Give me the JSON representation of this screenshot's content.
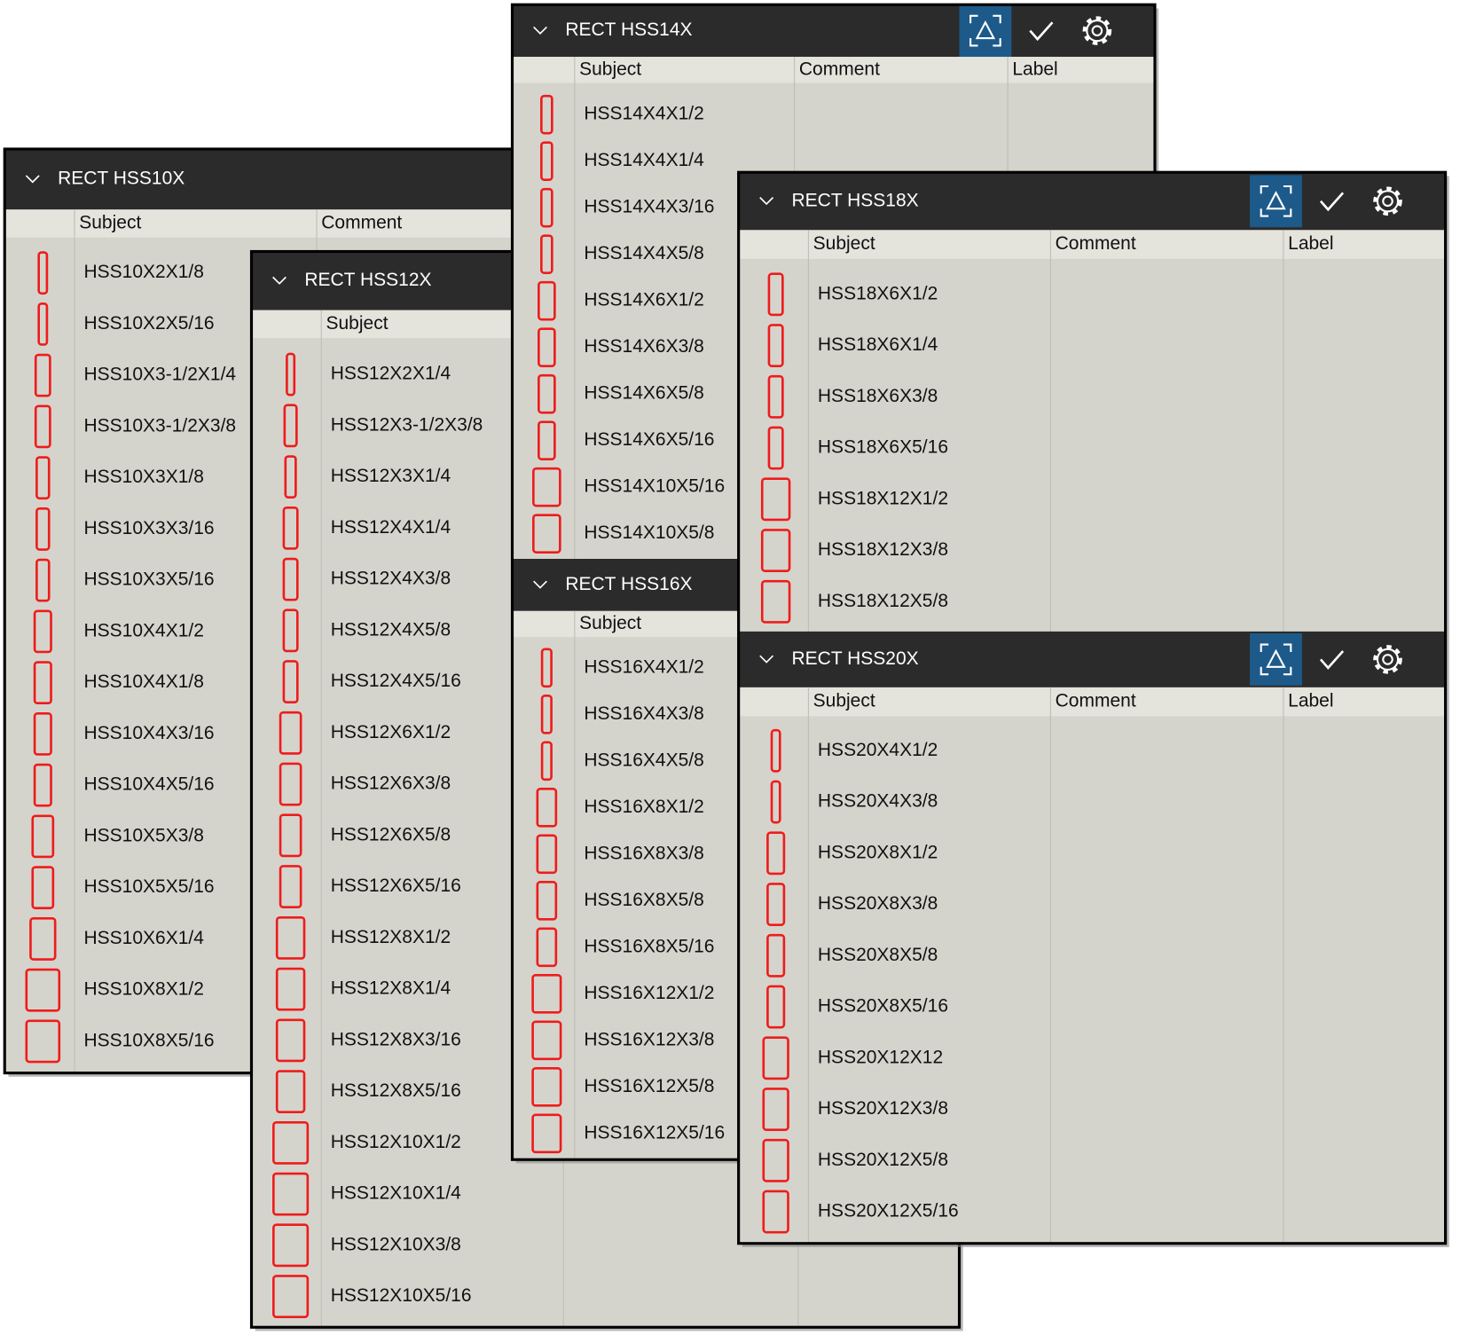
{
  "panels": [
    {
      "groups": [
        {
          "title": "RECT HSS10X",
          "columns": [
            "Subject",
            "Comment"
          ],
          "rows": [
            "HSS10X2X1/8",
            "HSS10X2X5/16",
            "HSS10X3-1/2X1/4",
            "HSS10X3-1/2X3/8",
            "HSS10X3X1/8",
            "HSS10X3X3/16",
            "HSS10X3X5/16",
            "HSS10X4X1/2",
            "HSS10X4X1/8",
            "HSS10X4X3/16",
            "HSS10X4X5/16",
            "HSS10X5X3/8",
            "HSS10X5X5/16",
            "HSS10X6X1/4",
            "HSS10X8X1/2",
            "HSS10X8X5/16"
          ]
        }
      ]
    },
    {
      "groups": [
        {
          "title": "RECT HSS12X",
          "columns": [
            "Subject"
          ],
          "rows": [
            "HSS12X2X1/4",
            "HSS12X3-1/2X3/8",
            "HSS12X3X1/4",
            "HSS12X4X1/4",
            "HSS12X4X3/8",
            "HSS12X4X5/8",
            "HSS12X4X5/16",
            "HSS12X6X1/2",
            "HSS12X6X3/8",
            "HSS12X6X5/8",
            "HSS12X6X5/16",
            "HSS12X8X1/2",
            "HSS12X8X1/4",
            "HSS12X8X3/16",
            "HSS12X8X5/16",
            "HSS12X10X1/2",
            "HSS12X10X1/4",
            "HSS12X10X3/8",
            "HSS12X10X5/16"
          ]
        }
      ]
    },
    {
      "groups": [
        {
          "title": "RECT HSS14X",
          "columns": [
            "Subject",
            "Comment",
            "Label"
          ],
          "rows": [
            "HSS14X4X1/2",
            "HSS14X4X1/4",
            "HSS14X4X3/16",
            "HSS14X4X5/8",
            "HSS14X6X1/2",
            "HSS14X6X3/8",
            "HSS14X6X5/8",
            "HSS14X6X5/16",
            "HSS14X10X5/16",
            "HSS14X10X5/8"
          ]
        },
        {
          "title": "RECT HSS16X",
          "columns": [
            "Subject"
          ],
          "rows": [
            "HSS16X4X1/2",
            "HSS16X4X3/8",
            "HSS16X4X5/8",
            "HSS16X8X1/2",
            "HSS16X8X3/8",
            "HSS16X8X5/8",
            "HSS16X8X5/16",
            "HSS16X12X1/2",
            "HSS16X12X3/8",
            "HSS16X12X5/8",
            "HSS16X12X5/16"
          ]
        }
      ]
    },
    {
      "groups": [
        {
          "title": "RECT HSS18X",
          "columns": [
            "Subject",
            "Comment",
            "Label"
          ],
          "rows": [
            "HSS18X6X1/2",
            "HSS18X6X1/4",
            "HSS18X6X3/8",
            "HSS18X6X5/16",
            "HSS18X12X1/2",
            "HSS18X12X3/8",
            "HSS18X12X5/8"
          ]
        },
        {
          "title": "RECT HSS20X",
          "columns": [
            "Subject",
            "Comment",
            "Label"
          ],
          "rows": [
            "HSS20X4X1/2",
            "HSS20X4X3/8",
            "HSS20X8X1/2",
            "HSS20X8X3/8",
            "HSS20X8X5/8",
            "HSS20X8X5/16",
            "HSS20X12X12",
            "HSS20X12X3/8",
            "HSS20X12X5/8",
            "HSS20X12X5/16"
          ]
        }
      ]
    }
  ]
}
